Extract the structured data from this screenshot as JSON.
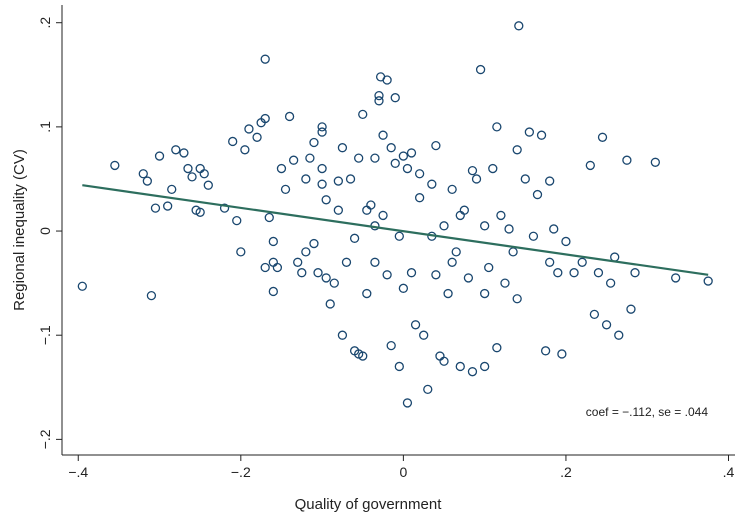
{
  "chart_data": {
    "type": "scatter",
    "x_label": "Quality of government",
    "y_label": "Regional inequality (CV)",
    "annotation": "coef = −.112, se = .044",
    "xlim": [
      -0.42,
      0.408
    ],
    "ylim": [
      -0.215,
      0.217
    ],
    "xticks": [
      {
        "value": -0.4,
        "label": "−.4"
      },
      {
        "value": -0.2,
        "label": "−.2"
      },
      0,
      {
        "value": 0.2,
        "label": ".2"
      },
      {
        "value": 0.4,
        "label": ".4"
      }
    ],
    "yticks": [
      {
        "value": -0.2,
        "label": "−.2"
      },
      {
        "value": -0.1,
        "label": "−.1"
      },
      0,
      {
        "value": 0.1,
        "label": ".1"
      },
      {
        "value": 0.2,
        "label": ".2"
      }
    ],
    "point_color": "#1a476f",
    "line_color": "#2d6e5e",
    "x": [
      -0.395,
      -0.355,
      -0.32,
      -0.315,
      -0.31,
      -0.305,
      -0.3,
      -0.29,
      -0.285,
      -0.28,
      -0.27,
      -0.265,
      -0.26,
      -0.255,
      -0.25,
      -0.245,
      -0.24,
      -0.25,
      -0.22,
      -0.21,
      -0.205,
      -0.2,
      -0.195,
      -0.19,
      -0.18,
      -0.175,
      -0.17,
      -0.17,
      -0.17,
      -0.165,
      -0.16,
      -0.16,
      -0.16,
      -0.155,
      -0.15,
      -0.145,
      -0.14,
      -0.135,
      -0.13,
      -0.125,
      -0.12,
      -0.12,
      -0.115,
      -0.11,
      -0.11,
      -0.105,
      -0.1,
      -0.1,
      -0.1,
      -0.1,
      -0.095,
      -0.095,
      -0.09,
      -0.085,
      -0.08,
      -0.08,
      -0.075,
      -0.075,
      -0.07,
      -0.065,
      -0.06,
      -0.06,
      -0.055,
      -0.055,
      -0.05,
      -0.05,
      -0.045,
      -0.045,
      -0.04,
      -0.035,
      -0.035,
      -0.035,
      -0.03,
      -0.03,
      -0.028,
      -0.025,
      -0.025,
      -0.02,
      -0.02,
      -0.015,
      -0.015,
      -0.01,
      -0.01,
      -0.005,
      -0.005,
      0,
      0,
      0.005,
      0.005,
      0.01,
      0.01,
      0.015,
      0.02,
      0.02,
      0.025,
      0.03,
      0.035,
      0.035,
      0.04,
      0.04,
      0.045,
      0.05,
      0.05,
      0.055,
      0.06,
      0.06,
      0.065,
      0.07,
      0.07,
      0.075,
      0.08,
      0.085,
      0.085,
      0.09,
      0.095,
      0.1,
      0.1,
      0.1,
      0.105,
      0.11,
      0.115,
      0.115,
      0.12,
      0.125,
      0.13,
      0.135,
      0.14,
      0.14,
      0.142,
      0.15,
      0.155,
      0.16,
      0.165,
      0.17,
      0.175,
      0.18,
      0.18,
      0.185,
      0.19,
      0.195,
      0.2,
      0.21,
      0.22,
      0.23,
      0.235,
      0.24,
      0.245,
      0.25,
      0.255,
      0.26,
      0.265,
      0.275,
      0.28,
      0.285,
      0.31,
      0.335,
      0.375
    ],
    "y": [
      -0.053,
      0.063,
      0.055,
      0.048,
      -0.062,
      0.022,
      0.072,
      0.024,
      0.04,
      0.078,
      0.075,
      0.06,
      0.052,
      0.02,
      0.06,
      0.055,
      0.044,
      0.018,
      0.022,
      0.086,
      0.01,
      -0.02,
      0.078,
      0.098,
      0.09,
      0.104,
      0.165,
      0.108,
      -0.035,
      0.013,
      -0.01,
      -0.03,
      -0.058,
      -0.035,
      0.06,
      0.04,
      0.11,
      0.068,
      -0.03,
      -0.04,
      0.05,
      -0.02,
      0.07,
      0.085,
      -0.012,
      -0.04,
      0.1,
      0.095,
      0.06,
      0.045,
      0.03,
      -0.045,
      -0.07,
      -0.05,
      0.02,
      0.048,
      0.08,
      -0.1,
      -0.03,
      0.05,
      -0.007,
      -0.115,
      -0.118,
      0.07,
      0.112,
      -0.12,
      -0.06,
      0.02,
      0.025,
      0.005,
      -0.03,
      0.07,
      0.13,
      0.125,
      0.148,
      0.092,
      0.015,
      0.145,
      -0.042,
      0.08,
      -0.11,
      0.128,
      0.065,
      -0.13,
      -0.005,
      0.072,
      -0.055,
      -0.165,
      0.06,
      0.075,
      -0.04,
      -0.09,
      0.055,
      0.032,
      -0.1,
      -0.152,
      -0.005,
      0.045,
      0.082,
      -0.042,
      -0.12,
      -0.125,
      0.005,
      -0.06,
      0.04,
      -0.03,
      -0.02,
      0.015,
      -0.13,
      0.02,
      -0.045,
      -0.135,
      0.058,
      0.05,
      0.155,
      -0.06,
      -0.13,
      0.005,
      -0.035,
      0.06,
      0.1,
      -0.112,
      0.015,
      -0.05,
      0.002,
      -0.02,
      0.078,
      -0.065,
      0.197,
      0.05,
      0.095,
      -0.005,
      0.035,
      0.092,
      -0.115,
      -0.03,
      0.048,
      0.002,
      -0.04,
      -0.118,
      -0.01,
      -0.04,
      -0.03,
      0.063,
      -0.08,
      -0.04,
      0.09,
      -0.09,
      -0.05,
      -0.025,
      -0.1,
      0.068,
      -0.075,
      -0.04,
      0.066,
      -0.045,
      -0.048
    ],
    "fit_x": [
      -0.395,
      0.375
    ],
    "fit_y": [
      0.044,
      -0.042
    ]
  }
}
